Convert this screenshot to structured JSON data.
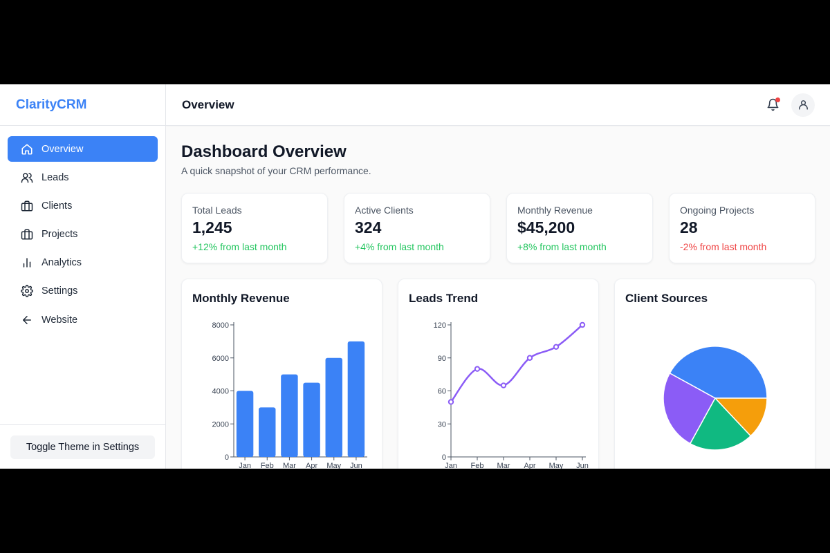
{
  "brand": "ClarityCRM",
  "sidebar": {
    "items": [
      {
        "label": "Overview",
        "icon": "home-icon",
        "active": true
      },
      {
        "label": "Leads",
        "icon": "users-icon",
        "active": false
      },
      {
        "label": "Clients",
        "icon": "briefcase-icon",
        "active": false
      },
      {
        "label": "Projects",
        "icon": "briefcase-icon",
        "active": false
      },
      {
        "label": "Analytics",
        "icon": "bar-chart-icon",
        "active": false
      },
      {
        "label": "Settings",
        "icon": "gear-icon",
        "active": false
      },
      {
        "label": "Website",
        "icon": "arrow-left-icon",
        "active": false
      }
    ],
    "footer_button": "Toggle Theme in Settings"
  },
  "topbar": {
    "title": "Overview",
    "notification_icon": "bell-icon",
    "has_notification": true,
    "avatar_icon": "user-icon"
  },
  "page": {
    "title": "Dashboard Overview",
    "subtitle": "A quick snapshot of your CRM performance."
  },
  "stats": [
    {
      "label": "Total Leads",
      "value": "1,245",
      "change": "+12% from last month",
      "trend": "up"
    },
    {
      "label": "Active Clients",
      "value": "324",
      "change": "+4% from last month",
      "trend": "up"
    },
    {
      "label": "Monthly Revenue",
      "value": "$45,200",
      "change": "+8% from last month",
      "trend": "up"
    },
    {
      "label": "Ongoing Projects",
      "value": "28",
      "change": "-2% from last month",
      "trend": "down"
    }
  ],
  "colors": {
    "accent": "#3b82f6",
    "positive": "#22c55e",
    "negative": "#ef4444",
    "line": "#8b5cf6"
  },
  "charts": {
    "revenue_title": "Monthly Revenue",
    "leads_title": "Leads Trend",
    "sources_title": "Client Sources"
  },
  "chart_data": [
    {
      "type": "bar",
      "title": "Monthly Revenue",
      "categories": [
        "Jan",
        "Feb",
        "Mar",
        "Apr",
        "May",
        "Jun"
      ],
      "values": [
        4000,
        3000,
        5000,
        4500,
        6000,
        7000
      ],
      "ylim": [
        0,
        8000
      ],
      "yticks": [
        0,
        2000,
        4000,
        6000,
        8000
      ],
      "color": "#3b82f6"
    },
    {
      "type": "line",
      "title": "Leads Trend",
      "categories": [
        "Jan",
        "Feb",
        "Mar",
        "Apr",
        "May",
        "Jun"
      ],
      "values": [
        50,
        80,
        65,
        90,
        100,
        120
      ],
      "ylim": [
        0,
        120
      ],
      "yticks": [
        0,
        30,
        60,
        90,
        120
      ],
      "color": "#8b5cf6"
    },
    {
      "type": "pie",
      "title": "Client Sources",
      "values": [
        42,
        25,
        20,
        13
      ],
      "colors": [
        "#3b82f6",
        "#8b5cf6",
        "#10b981",
        "#f59e0b"
      ]
    }
  ]
}
